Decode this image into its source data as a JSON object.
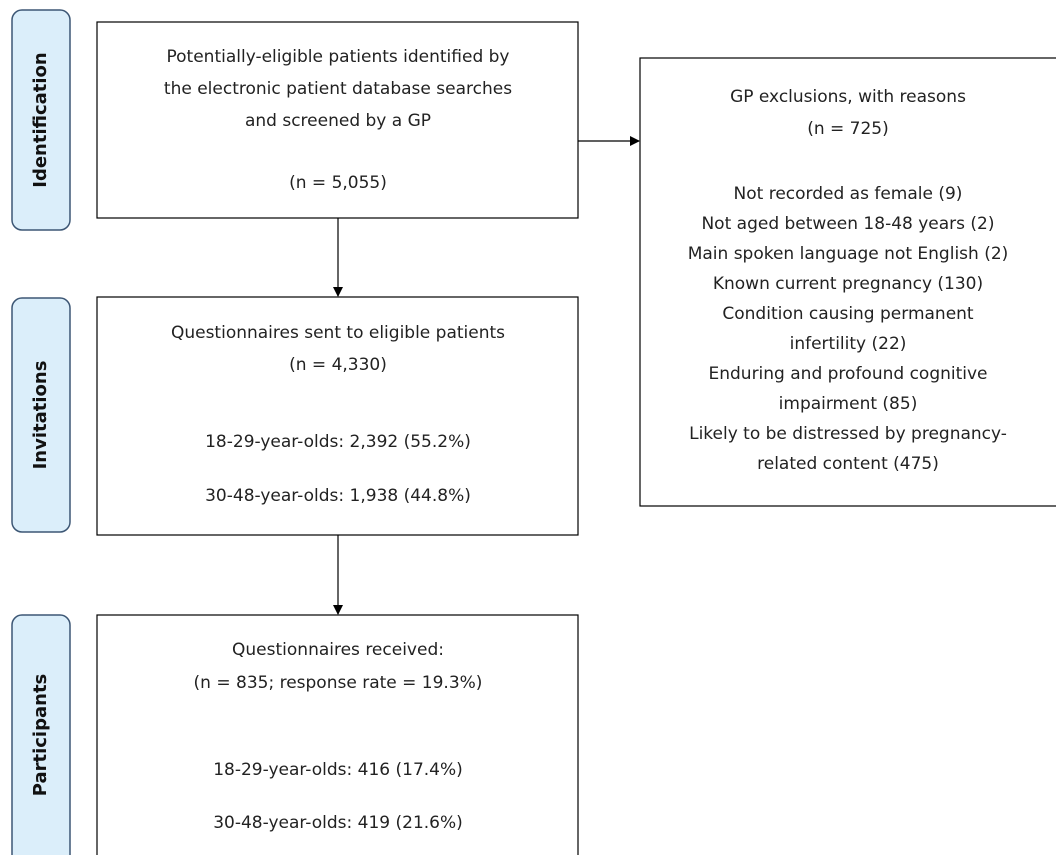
{
  "stages": [
    "Identification",
    "Invitations",
    "Participants"
  ],
  "boxes": [
    {
      "lines": [
        "Potentially-eligible patients identified by",
        "the electronic patient database searches",
        "and screened by a GP",
        "(n = 5,055)"
      ]
    },
    {
      "lines": [
        "Questionnaires sent to eligible patients",
        "(n = 4,330)",
        "18-29-year-olds: 2,392 (55.2%)",
        "30-48-year-olds: 1,938 (44.8%)"
      ]
    },
    {
      "lines": [
        "Questionnaires received:",
        "(n = 835; response rate = 19.3%)",
        "18-29-year-olds: 416 (17.4%)",
        "30-48-year-olds: 419 (21.6%)"
      ]
    }
  ],
  "exclusions": {
    "lines": [
      "GP exclusions, with reasons",
      "(n = 725)",
      "Not recorded as female (9)",
      "Not aged between 18-48 years (2)",
      "Main spoken language not English (2)",
      "Known current pregnancy (130)",
      "Condition causing permanent",
      "infertility (22)",
      "Enduring and profound cognitive",
      "impairment (85)",
      "Likely to be distressed by pregnancy-",
      "related content (475)"
    ]
  }
}
